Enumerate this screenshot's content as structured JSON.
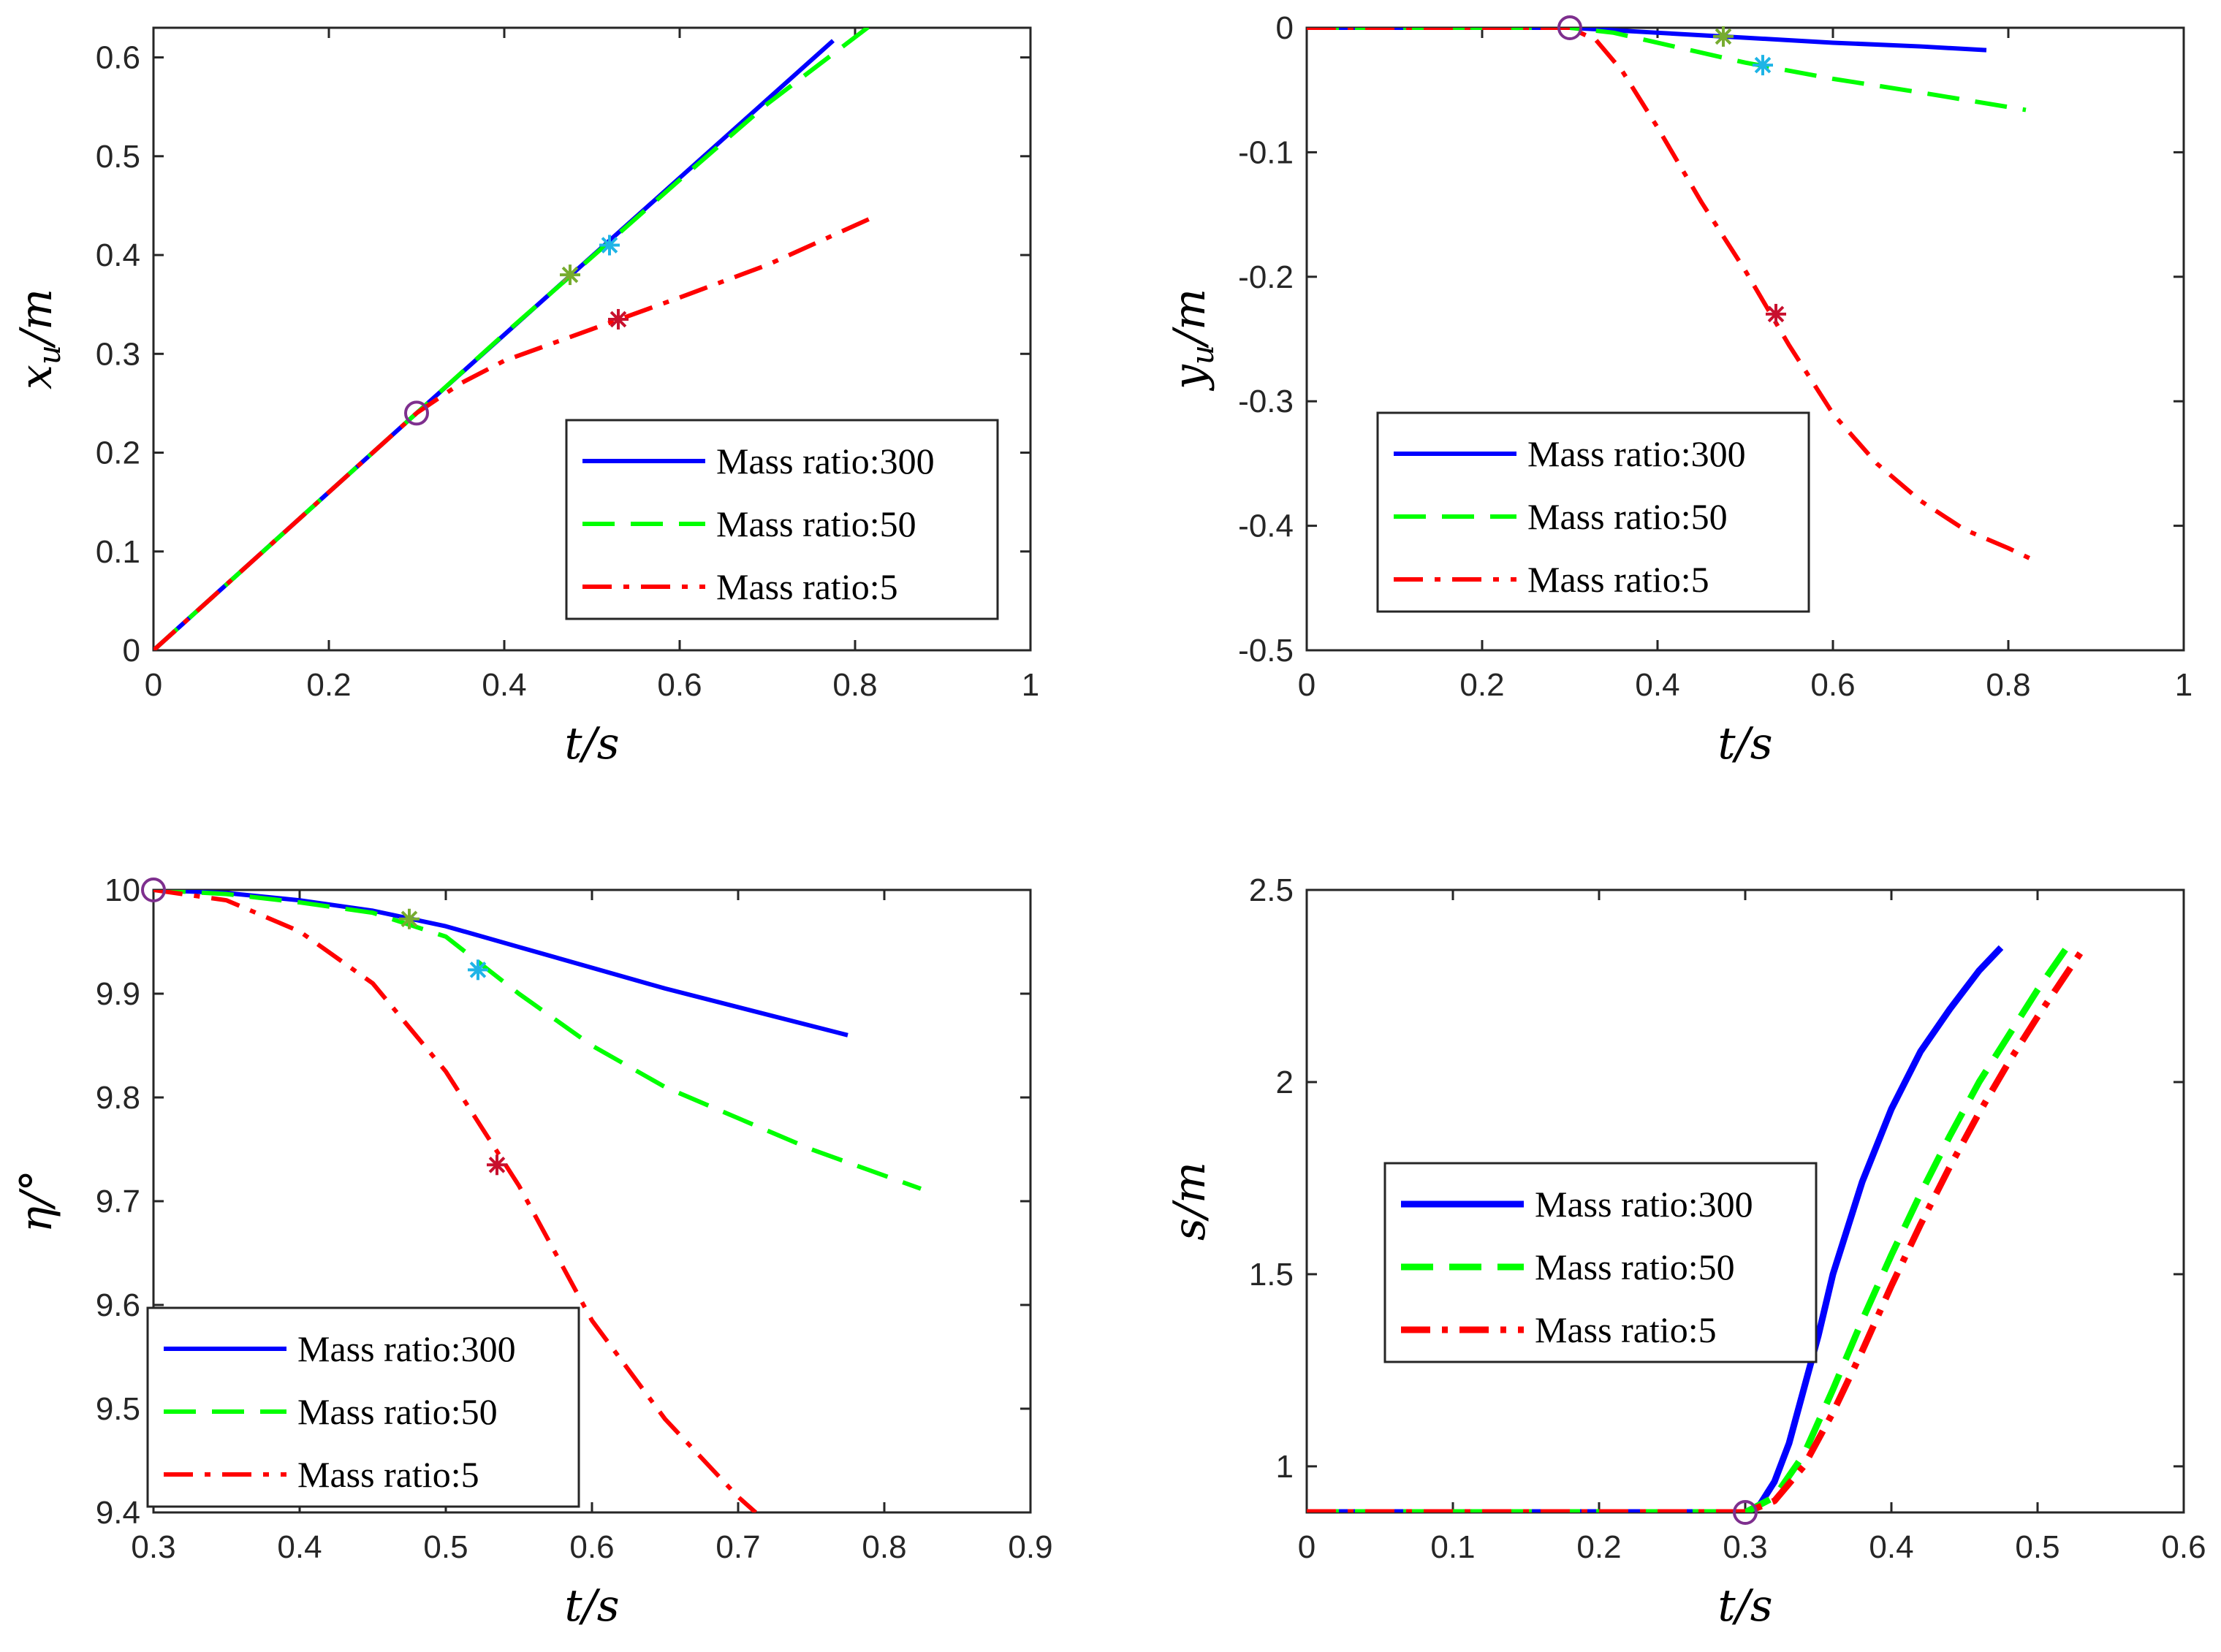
{
  "colors": {
    "blue": "#0000ff",
    "green": "#00ff00",
    "red": "#ff0000",
    "circle": "#7e2f8e",
    "star_green": "#77ac30",
    "star_cyan": "#1eb4e6",
    "star_red": "#c8102e"
  },
  "chart_data": [
    {
      "id": "xu",
      "type": "line",
      "xlabel": "t/s",
      "ylabel": "x_u/m",
      "xlim": [
        0,
        1
      ],
      "ylim": [
        0,
        0.63
      ],
      "xticks": [
        0,
        0.2,
        0.4,
        0.6,
        0.8,
        1
      ],
      "xtick_labels": [
        "0",
        "0.2",
        "0.4",
        "0.6",
        "0.8",
        "1"
      ],
      "yticks": [
        0,
        0.1,
        0.2,
        0.3,
        0.4,
        0.5,
        0.6
      ],
      "ytick_labels": [
        "0",
        "0.1",
        "0.2",
        "0.3",
        "0.4",
        "0.5",
        "0.6"
      ],
      "legend": "lower-right",
      "legend_labels": [
        "Mass ratio:300",
        "Mass ratio:50",
        "Mass ratio:5"
      ],
      "series": [
        {
          "name": "Mass ratio:300",
          "style": "solid",
          "color": "blue",
          "x": [
            0,
            0.3,
            0.775
          ],
          "y": [
            0,
            0.24,
            0.617
          ]
        },
        {
          "name": "Mass ratio:50",
          "style": "dashed",
          "color": "green",
          "x": [
            0,
            0.3,
            0.4,
            0.5,
            0.6,
            0.7,
            0.82
          ],
          "y": [
            0,
            0.24,
            0.32,
            0.398,
            0.476,
            0.553,
            0.634
          ]
        },
        {
          "name": "Mass ratio:5",
          "style": "dashdot",
          "color": "red",
          "x": [
            0,
            0.3,
            0.35,
            0.4,
            0.5,
            0.6,
            0.7,
            0.825
          ],
          "y": [
            0,
            0.24,
            0.27,
            0.293,
            0.325,
            0.357,
            0.39,
            0.44
          ]
        }
      ],
      "markers": [
        {
          "kind": "circle",
          "color": "circle",
          "x": 0.3,
          "y": 0.24
        },
        {
          "kind": "star",
          "color": "star_green",
          "x": 0.475,
          "y": 0.38
        },
        {
          "kind": "star",
          "color": "star_cyan",
          "x": 0.52,
          "y": 0.41
        },
        {
          "kind": "star",
          "color": "star_red",
          "x": 0.53,
          "y": 0.335
        }
      ]
    },
    {
      "id": "yu",
      "type": "line",
      "xlabel": "t/s",
      "ylabel": "y_u/m",
      "xlim": [
        0,
        1
      ],
      "ylim": [
        -0.5,
        0
      ],
      "xticks": [
        0,
        0.2,
        0.4,
        0.6,
        0.8,
        1
      ],
      "xtick_labels": [
        "0",
        "0.2",
        "0.4",
        "0.6",
        "0.8",
        "1"
      ],
      "yticks": [
        -0.5,
        -0.4,
        -0.3,
        -0.2,
        -0.1,
        0
      ],
      "ytick_labels": [
        "-0.5",
        "-0.4",
        "-0.3",
        "-0.2",
        "-0.1",
        "0"
      ],
      "legend": "lower-center",
      "legend_labels": [
        "Mass ratio:300",
        "Mass ratio:50",
        "Mass ratio:5"
      ],
      "series": [
        {
          "name": "Mass ratio:300",
          "style": "solid",
          "color": "blue",
          "x": [
            0,
            0.3,
            0.4,
            0.5,
            0.6,
            0.7,
            0.775
          ],
          "y": [
            0,
            0,
            -0.004,
            -0.008,
            -0.012,
            -0.015,
            -0.018
          ]
        },
        {
          "name": "Mass ratio:50",
          "style": "dashed",
          "color": "green",
          "x": [
            0,
            0.3,
            0.35,
            0.4,
            0.45,
            0.5,
            0.6,
            0.7,
            0.82
          ],
          "y": [
            0,
            0,
            -0.004,
            -0.012,
            -0.02,
            -0.028,
            -0.041,
            -0.052,
            -0.066
          ]
        },
        {
          "name": "Mass ratio:5",
          "style": "dashdot",
          "color": "red",
          "x": [
            0,
            0.3,
            0.33,
            0.36,
            0.4,
            0.45,
            0.5,
            0.55,
            0.6,
            0.65,
            0.7,
            0.75,
            0.8,
            0.83
          ],
          "y": [
            0,
            0,
            -0.01,
            -0.035,
            -0.08,
            -0.14,
            -0.195,
            -0.255,
            -0.31,
            -0.35,
            -0.38,
            -0.403,
            -0.418,
            -0.428
          ]
        }
      ],
      "markers": [
        {
          "kind": "circle",
          "color": "circle",
          "x": 0.3,
          "y": 0
        },
        {
          "kind": "star",
          "color": "star_green",
          "x": 0.475,
          "y": -0.007
        },
        {
          "kind": "star",
          "color": "star_cyan",
          "x": 0.52,
          "y": -0.03
        },
        {
          "kind": "star",
          "color": "star_red",
          "x": 0.535,
          "y": -0.23
        }
      ]
    },
    {
      "id": "eta",
      "type": "line",
      "xlabel": "t/s",
      "ylabel": "η/°",
      "xlim": [
        0.3,
        0.9
      ],
      "ylim": [
        9.4,
        10
      ],
      "xticks": [
        0.3,
        0.4,
        0.5,
        0.6,
        0.7,
        0.8,
        0.9
      ],
      "xtick_labels": [
        "0.3",
        "0.4",
        "0.5",
        "0.6",
        "0.7",
        "0.8",
        "0.9"
      ],
      "yticks": [
        9.4,
        9.5,
        9.6,
        9.7,
        9.8,
        9.9,
        10
      ],
      "ytick_labels": [
        "9.4",
        "9.5",
        "9.6",
        "9.7",
        "9.8",
        "9.9",
        "10"
      ],
      "legend": "lower-left",
      "legend_labels": [
        "Mass ratio:300",
        "Mass ratio:50",
        "Mass ratio:5"
      ],
      "series": [
        {
          "name": "Mass ratio:300",
          "style": "solid",
          "color": "blue",
          "x": [
            0.3,
            0.35,
            0.4,
            0.45,
            0.5,
            0.55,
            0.6,
            0.65,
            0.7,
            0.775
          ],
          "y": [
            10,
            9.997,
            9.99,
            9.98,
            9.965,
            9.945,
            9.925,
            9.905,
            9.887,
            9.86
          ]
        },
        {
          "name": "Mass ratio:50",
          "style": "dashed",
          "color": "green",
          "x": [
            0.3,
            0.35,
            0.4,
            0.45,
            0.5,
            0.55,
            0.6,
            0.65,
            0.7,
            0.75,
            0.825
          ],
          "y": [
            10,
            9.996,
            9.988,
            9.978,
            9.955,
            9.9,
            9.85,
            9.81,
            9.78,
            9.75,
            9.712
          ]
        },
        {
          "name": "Mass ratio:5",
          "style": "dashdot",
          "color": "red",
          "x": [
            0.3,
            0.35,
            0.4,
            0.45,
            0.5,
            0.525,
            0.55,
            0.6,
            0.65,
            0.7,
            0.712
          ],
          "y": [
            10,
            9.99,
            9.96,
            9.91,
            9.825,
            9.77,
            9.715,
            9.585,
            9.49,
            9.415,
            9.4
          ]
        }
      ],
      "markers": [
        {
          "kind": "circle",
          "color": "circle",
          "x": 0.3,
          "y": 10
        },
        {
          "kind": "star",
          "color": "star_green",
          "x": 0.475,
          "y": 9.972
        },
        {
          "kind": "star",
          "color": "star_cyan",
          "x": 0.522,
          "y": 9.923
        },
        {
          "kind": "star",
          "color": "star_red",
          "x": 0.535,
          "y": 9.735
        }
      ]
    },
    {
      "id": "s",
      "type": "line",
      "xlabel": "t/s",
      "ylabel": "s/m",
      "xlim": [
        0,
        0.6
      ],
      "ylim": [
        0.88,
        2.5
      ],
      "xticks": [
        0,
        0.1,
        0.2,
        0.3,
        0.4,
        0.5,
        0.6
      ],
      "xtick_labels": [
        "0",
        "0.1",
        "0.2",
        "0.3",
        "0.4",
        "0.5",
        "0.6"
      ],
      "yticks": [
        1,
        1.5,
        2,
        2.5
      ],
      "ytick_labels": [
        "1",
        "1.5",
        "2",
        "2.5"
      ],
      "legend": "center-right",
      "legend_labels": [
        "Mass ratio:300",
        "Mass ratio:50",
        "Mass ratio:5"
      ],
      "series": [
        {
          "name": "Mass ratio:300",
          "style": "solid",
          "color": "blue",
          "x": [
            0,
            0.3,
            0.31,
            0.32,
            0.33,
            0.34,
            0.35,
            0.36,
            0.38,
            0.4,
            0.42,
            0.44,
            0.46,
            0.475
          ],
          "y": [
            0.88,
            0.88,
            0.9,
            0.96,
            1.06,
            1.2,
            1.34,
            1.5,
            1.74,
            1.93,
            2.08,
            2.19,
            2.29,
            2.35
          ]
        },
        {
          "name": "Mass ratio:50",
          "style": "dashed",
          "color": "green",
          "x": [
            0,
            0.3,
            0.32,
            0.34,
            0.36,
            0.38,
            0.4,
            0.42,
            0.44,
            0.46,
            0.48,
            0.5,
            0.52
          ],
          "y": [
            0.88,
            0.88,
            0.92,
            1.03,
            1.2,
            1.38,
            1.55,
            1.71,
            1.86,
            2.0,
            2.12,
            2.24,
            2.35
          ]
        },
        {
          "name": "Mass ratio:5",
          "style": "dashdot",
          "color": "red",
          "x": [
            0,
            0.3,
            0.32,
            0.34,
            0.36,
            0.38,
            0.4,
            0.42,
            0.44,
            0.46,
            0.48,
            0.5,
            0.53
          ],
          "y": [
            0.88,
            0.88,
            0.91,
            1.0,
            1.14,
            1.3,
            1.47,
            1.63,
            1.78,
            1.92,
            2.05,
            2.17,
            2.34
          ]
        }
      ],
      "markers": [
        {
          "kind": "circle",
          "color": "circle",
          "x": 0.3,
          "y": 0.88
        }
      ]
    }
  ]
}
